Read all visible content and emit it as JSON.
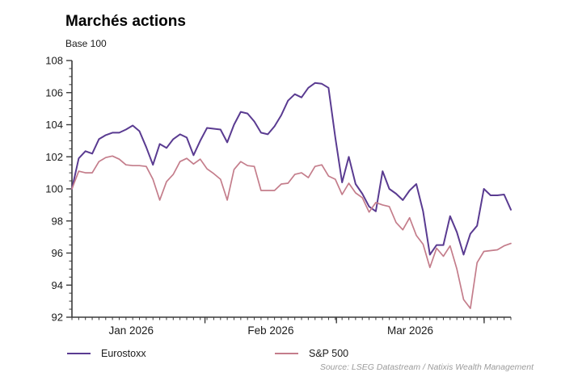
{
  "title": "Marchés actions",
  "subtitle": "Base 100",
  "source": "Source: LSEG Datastream / Natixis Wealth Management",
  "legend": [
    {
      "label": "Eurostoxx",
      "color": "#5a3b91"
    },
    {
      "label": "S&P 500",
      "color": "#c47d8b"
    }
  ],
  "colors": {
    "axis": "#3a3a3a",
    "tick_label": "#1a1a1a",
    "source_text": "#9b9b9b",
    "eurostoxx_line": "#5a3b91",
    "sp500_line": "#c47d8b"
  },
  "chart_data": {
    "type": "line",
    "title": "Marchés actions",
    "subtitle": "Base 100",
    "xlabel": "",
    "ylabel": "",
    "ylim": [
      92,
      108
    ],
    "y_major_step": 2,
    "y_minor_step": 0.5,
    "y_tick_labels": [
      92,
      94,
      96,
      98,
      100,
      102,
      104,
      106,
      108
    ],
    "grid": false,
    "legend_position": "bottom",
    "x_axis": {
      "labels": [
        "Jan 2026",
        "Feb 2026",
        "Mar 2026"
      ],
      "label_center_indices": [
        8.77,
        29.44,
        50.1
      ],
      "month_tick_indices": [
        19.7,
        39.17,
        61.04
      ],
      "minor_tick_every_point": 1
    },
    "series": [
      {
        "name": "Eurostoxx",
        "color": "#5a3b91",
        "stroke_width": 2,
        "values": [
          100,
          101.9,
          102.35,
          102.2,
          103.1,
          103.35,
          103.5,
          103.5,
          103.7,
          103.95,
          103.6,
          102.6,
          101.5,
          102.8,
          102.55,
          103.1,
          103.4,
          103.2,
          102.1,
          103,
          103.8,
          103.75,
          103.7,
          102.9,
          104,
          104.8,
          104.7,
          104.2,
          103.5,
          103.4,
          103.9,
          104.6,
          105.5,
          105.9,
          105.7,
          106.3,
          106.6,
          106.55,
          106.3,
          103.2,
          100.4,
          102,
          100.3,
          99.7,
          98.9,
          98.6,
          101.1,
          100,
          99.7,
          99.3,
          99.9,
          100.3,
          98.6,
          95.9,
          96.5,
          96.5,
          98.3,
          97.3,
          95.9,
          97.2,
          97.7,
          100,
          99.6,
          99.6,
          99.65,
          98.7
        ]
      },
      {
        "name": "S&P 500",
        "color": "#c47d8b",
        "stroke_width": 1.7,
        "values": [
          100,
          101.1,
          101,
          101,
          101.7,
          101.95,
          102.05,
          101.85,
          101.5,
          101.45,
          101.45,
          101.4,
          100.6,
          99.3,
          100.45,
          100.9,
          101.7,
          101.9,
          101.55,
          101.85,
          101.25,
          100.95,
          100.6,
          99.3,
          101.2,
          101.7,
          101.45,
          101.4,
          99.9,
          99.9,
          99.9,
          100.3,
          100.35,
          100.9,
          101,
          100.7,
          101.4,
          101.5,
          100.8,
          100.6,
          99.65,
          100.35,
          99.75,
          99.45,
          98.55,
          99.15,
          99,
          98.9,
          97.9,
          97.45,
          98.2,
          97.1,
          96.55,
          95.1,
          96.3,
          95.8,
          96.45,
          95,
          93.1,
          92.55,
          95.4,
          96.1,
          96.15,
          96.2,
          96.45,
          96.6
        ]
      }
    ]
  }
}
